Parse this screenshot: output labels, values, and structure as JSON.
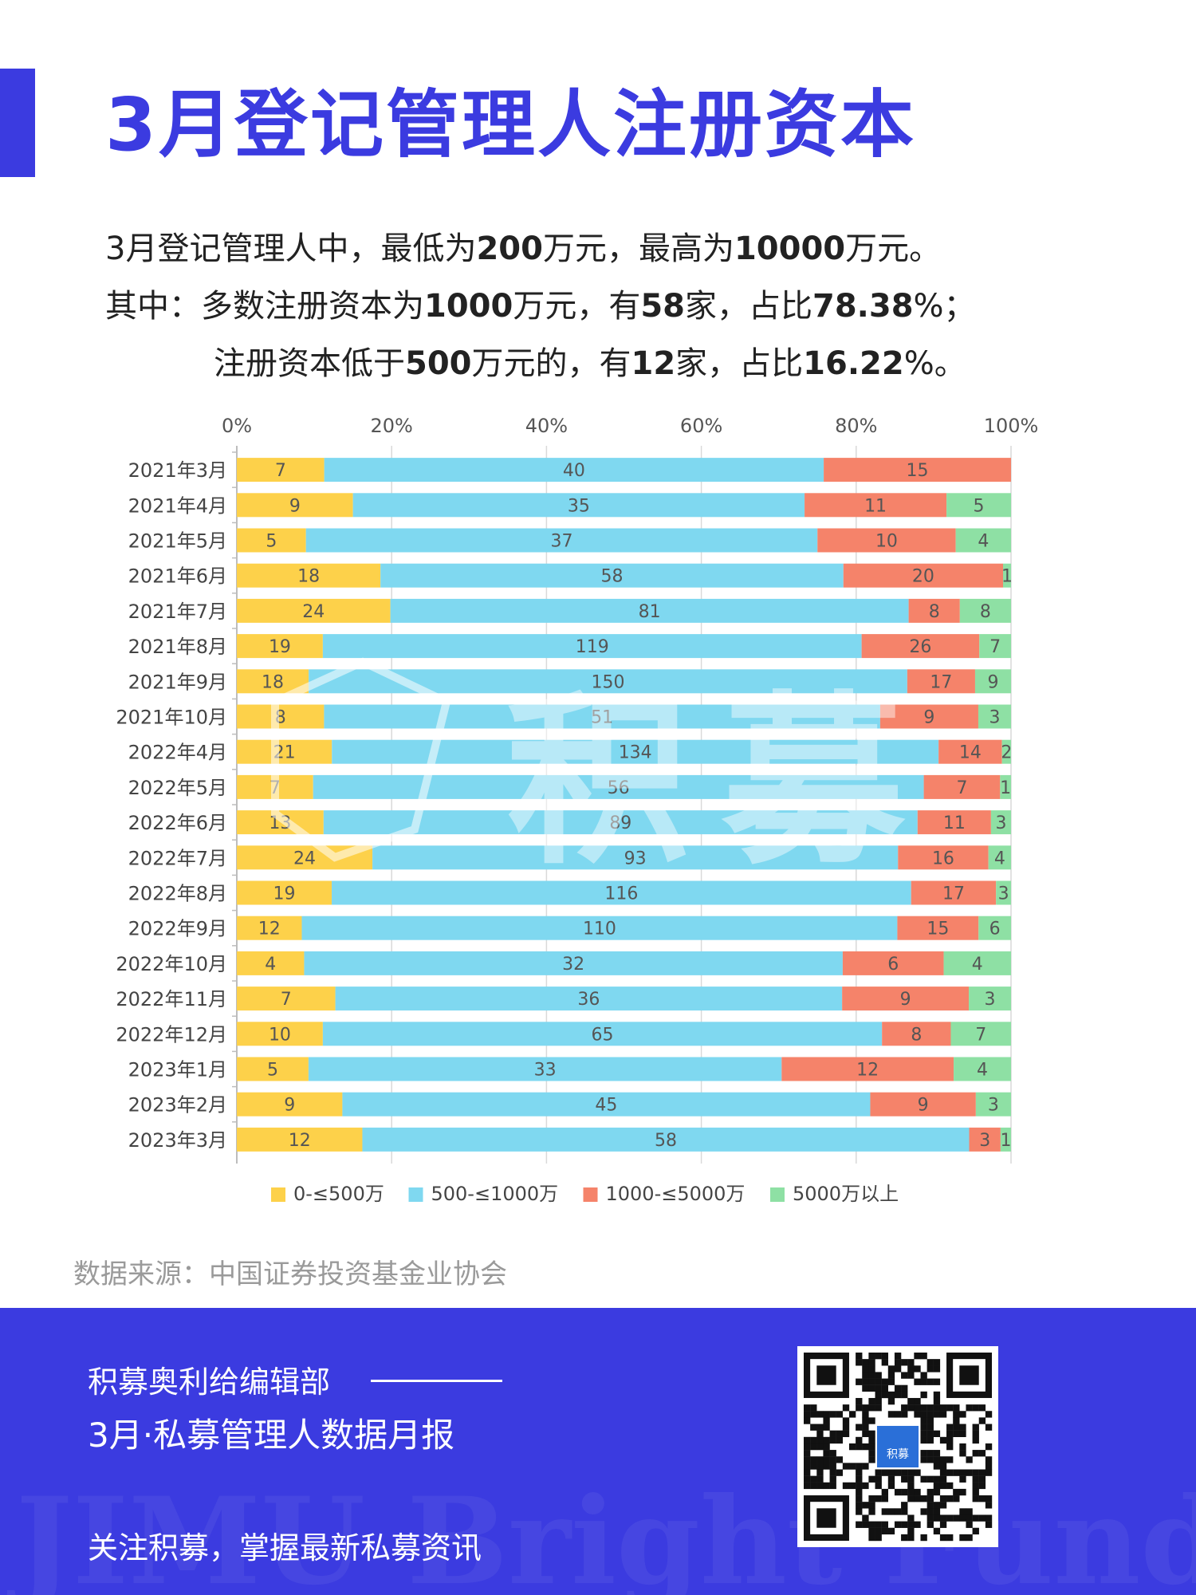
{
  "header": {
    "title": "3月登记管理人注册资本",
    "summary": {
      "line1": [
        "3月登记管理人中，最低为",
        "200",
        "万元，最高为",
        "10000",
        "万元。"
      ],
      "line2": [
        "其中：多数注册资本为",
        "1000",
        "万元，有",
        "58",
        "家，占比",
        "78.38",
        "%；"
      ],
      "line3": [
        "注册资本低于",
        "500",
        "万元的，有",
        "12",
        "家，占比",
        "16.22",
        "%。"
      ]
    }
  },
  "chart_data": {
    "type": "bar",
    "orientation": "horizontal",
    "stacked": "percent",
    "x_ticks": [
      "0%",
      "20%",
      "40%",
      "60%",
      "80%",
      "100%"
    ],
    "xlim": [
      0,
      100
    ],
    "legend_position": "bottom",
    "categories": [
      "2021年3月",
      "2021年4月",
      "2021年5月",
      "2021年6月",
      "2021年7月",
      "2021年8月",
      "2021年9月",
      "2021年10月",
      "2022年4月",
      "2022年5月",
      "2022年6月",
      "2022年7月",
      "2022年8月",
      "2022年9月",
      "2022年10月",
      "2022年11月",
      "2022年12月",
      "2023年1月",
      "2023年2月",
      "2023年3月"
    ],
    "series": [
      {
        "name": "0-≤500万",
        "color": "#fdd14a",
        "values": [
          7,
          9,
          5,
          18,
          24,
          19,
          18,
          8,
          21,
          7,
          13,
          24,
          19,
          12,
          4,
          7,
          10,
          5,
          9,
          12
        ]
      },
      {
        "name": "500-≤1000万",
        "color": "#7fd8f0",
        "values": [
          40,
          35,
          37,
          58,
          81,
          119,
          150,
          51,
          134,
          56,
          89,
          93,
          116,
          110,
          32,
          36,
          65,
          33,
          45,
          58
        ]
      },
      {
        "name": "1000-≤5000万",
        "color": "#f5836a",
        "values": [
          15,
          11,
          10,
          20,
          8,
          26,
          17,
          9,
          14,
          7,
          11,
          16,
          17,
          15,
          6,
          9,
          8,
          12,
          9,
          3
        ]
      },
      {
        "name": "5000万以上",
        "color": "#8ee0a4",
        "values": [
          0,
          5,
          4,
          1,
          8,
          7,
          9,
          3,
          2,
          1,
          3,
          4,
          3,
          6,
          4,
          3,
          7,
          4,
          3,
          1
        ]
      }
    ],
    "watermark": "积募"
  },
  "source": "数据来源：中国证券投资基金业协会",
  "footer": {
    "editor": "积募奥利给编辑部",
    "report": "3月·私募管理人数据月报",
    "follow": "关注积募，掌握最新私募资讯",
    "watermark": "JIMU Bright Fund Admin",
    "qr_label": "积募"
  }
}
